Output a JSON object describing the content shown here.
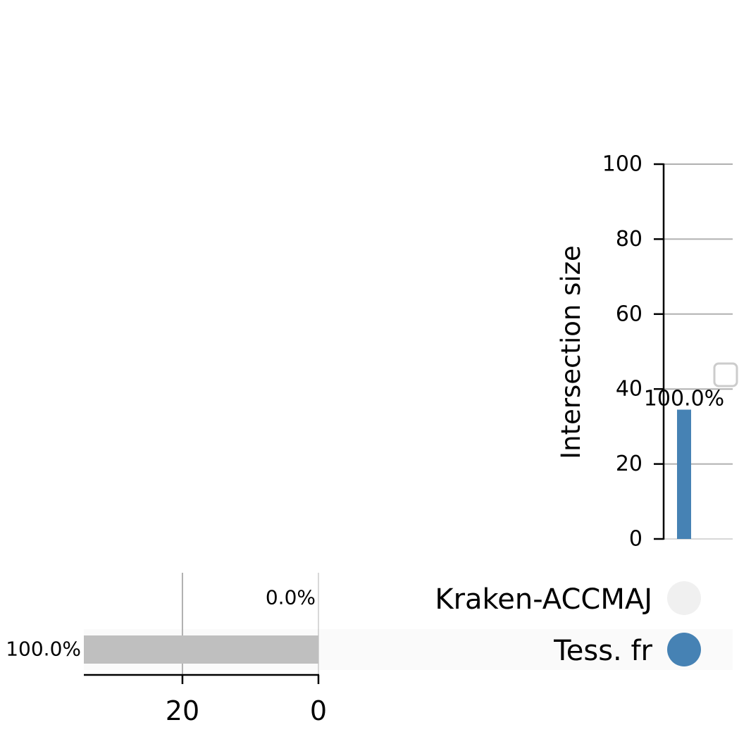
{
  "chart_data": {
    "type": "bar",
    "subtype": "upset",
    "intersections": {
      "ylabel": "Intersection size",
      "ylim": [
        0,
        100
      ],
      "yticks": [
        0,
        20,
        40,
        60,
        80,
        100
      ],
      "grid": true,
      "bars": [
        {
          "sets": [
            "Tess. fr"
          ],
          "value": 34.5,
          "label": "100.0%"
        }
      ]
    },
    "set_sizes": {
      "xlim": [
        0,
        34.5
      ],
      "xticks": [
        20,
        0
      ],
      "inverted": true,
      "grid": true,
      "bars": [
        {
          "set": "Kraken-ACCMAJ",
          "value": 0,
          "label": "0.0%"
        },
        {
          "set": "Tess. fr",
          "value": 34.5,
          "label": "100.0%"
        }
      ]
    },
    "matrix": {
      "sets": [
        "Kraken-ACCMAJ",
        "Tess. fr"
      ],
      "columns": [
        {
          "members": [
            false,
            true
          ]
        }
      ]
    },
    "legend": {
      "placement": "right",
      "entries": []
    }
  },
  "colors": {
    "intersection_bar": "#4682b4",
    "set_size_bar": "#bfbfbf",
    "active_dot": "#4682b4",
    "inactive_dot": "#f0f0f0",
    "grid": "#b0b0b0",
    "row_shade": "#fafafa",
    "legend_border": "#cccccc"
  }
}
